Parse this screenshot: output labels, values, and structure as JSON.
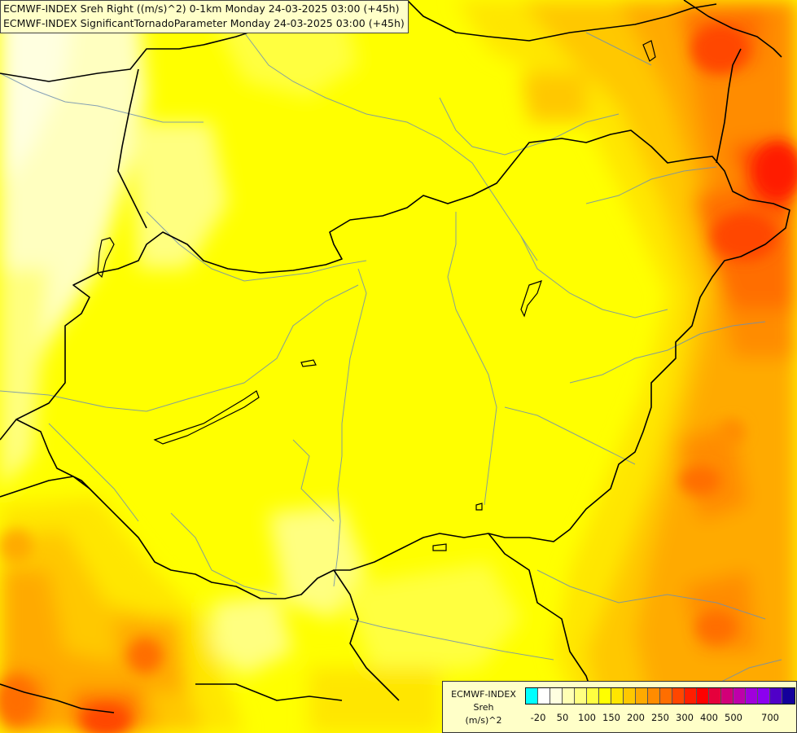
{
  "title": {
    "line1": "ECMWF-INDEX Sreh Right ((m/s)^2) 0-1km Monday 24-03-2025 03:00 (+45h)",
    "line2": "ECMWF-INDEX SignificantTornadoParameter Monday 24-03-2025 03:00 (+45h)"
  },
  "legend": {
    "line1": "ECMWF-INDEX",
    "line2": "Sreh",
    "line3": "(m/s)^2",
    "colors": [
      "#00ffff",
      "#ffffff",
      "#ffffe0",
      "#ffffb4",
      "#ffff80",
      "#ffff40",
      "#ffff00",
      "#ffe600",
      "#ffc800",
      "#ffaa00",
      "#ff8c00",
      "#ff6e00",
      "#ff4600",
      "#ff1e00",
      "#ff0000",
      "#e6003c",
      "#d20078",
      "#be00aa",
      "#a000dc",
      "#8c00f0",
      "#5000c8",
      "#14009b"
    ],
    "ticks": [
      "-20",
      "50",
      "100",
      "150",
      "200",
      "250",
      "300",
      "400",
      "500",
      "700"
    ]
  }
}
